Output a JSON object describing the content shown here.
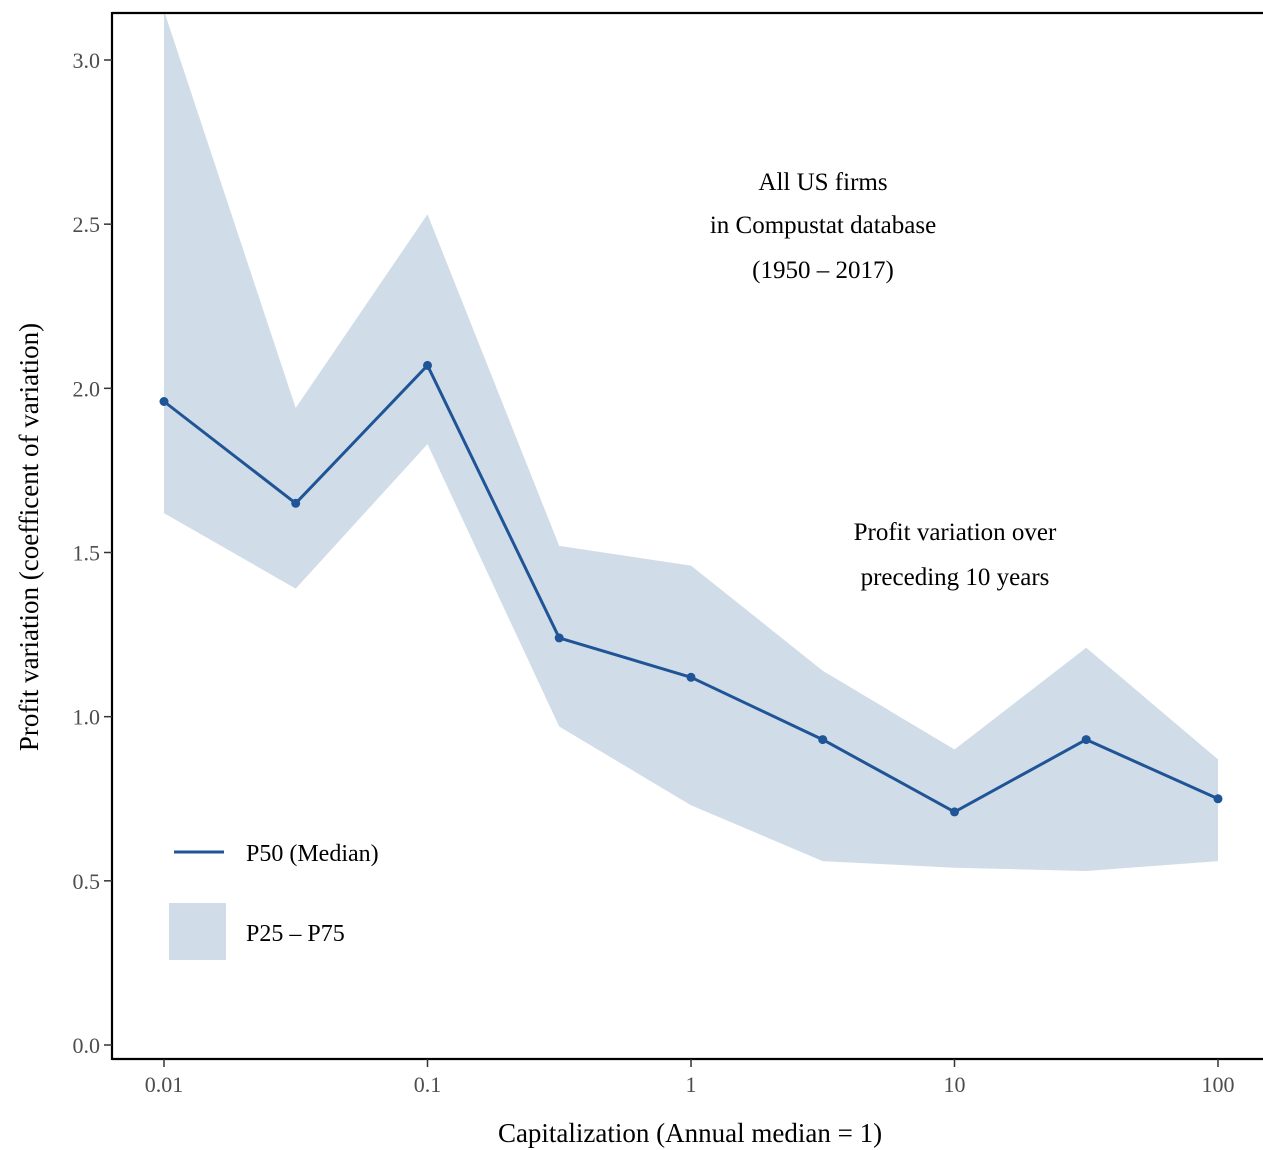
{
  "chart_data": {
    "type": "line",
    "xlabel": "Capitalization  (Annual median = 1)",
    "ylabel": "Profit variation (coefficent of variation)",
    "x_scale": "log",
    "xlim": [
      0.0065,
      135
    ],
    "ylim": [
      -0.03,
      3.15
    ],
    "x_ticks": [
      0.01,
      0.1,
      1,
      10,
      100
    ],
    "x_tick_labels": [
      "0.01",
      "0.1",
      "1",
      "10",
      "100"
    ],
    "y_ticks": [
      0.0,
      0.5,
      1.0,
      1.5,
      2.0,
      2.5,
      3.0
    ],
    "y_tick_labels": [
      "0.0",
      "0.5",
      "1.0",
      "1.5",
      "2.0",
      "2.5",
      "3.0"
    ],
    "grid": false,
    "x": [
      0.01,
      0.0316,
      0.1,
      0.316,
      1,
      3.16,
      10,
      31.6,
      100
    ],
    "series": [
      {
        "name": "P50 (Median)",
        "kind": "line",
        "color": "#1f5496",
        "values": [
          1.96,
          1.65,
          2.07,
          1.24,
          1.12,
          0.93,
          0.71,
          0.93,
          0.75
        ]
      },
      {
        "name": "P25 – P75",
        "kind": "band",
        "color": "#d0dce8",
        "lower": [
          1.62,
          1.39,
          1.83,
          0.97,
          0.73,
          0.56,
          0.54,
          0.53,
          0.56
        ],
        "upper": [
          3.15,
          1.94,
          2.53,
          1.52,
          1.46,
          1.14,
          0.9,
          1.21,
          0.87
        ]
      }
    ],
    "annotations": [
      {
        "lines": [
          "All US firms",
          "in Compustat database",
          "(1950 – 2017)"
        ]
      },
      {
        "lines": [
          "Profit variation over",
          "preceding 10 years"
        ]
      }
    ],
    "legend": {
      "placement": "bottom-left",
      "entries": [
        "P50 (Median)",
        "P25 – P75"
      ]
    }
  }
}
